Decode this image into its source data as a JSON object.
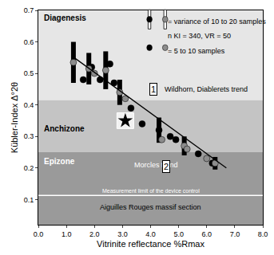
{
  "chart_data": {
    "type": "scatter",
    "x_label": "Vitrinite reflectance %Rmax",
    "y_label": "Kübler-Index Δ°2θ",
    "xlim": [
      0,
      8
    ],
    "ylim": [
      0.02,
      0.7
    ],
    "xticks": [
      {
        "value": 0,
        "label": "0.0"
      },
      {
        "value": 1,
        "label": "1.0"
      },
      {
        "value": 2,
        "label": "2.0"
      },
      {
        "value": 3,
        "label": "3.0"
      },
      {
        "value": 4,
        "label": "4.0"
      },
      {
        "value": 5,
        "label": "5.0"
      },
      {
        "value": 6,
        "label": "6.0"
      },
      {
        "value": 7,
        "label": "7.0"
      },
      {
        "value": 8,
        "label": "8.0"
      }
    ],
    "yticks": [
      0.1,
      0.2,
      0.3,
      0.4,
      0.5,
      0.6,
      0.7
    ],
    "grid": false,
    "zones": [
      {
        "name": "Diagenesis",
        "from": 0.415,
        "to": 0.7,
        "color": "#e6e6e6"
      },
      {
        "name": "Anchizone",
        "from": 0.25,
        "to": 0.415,
        "color": "#c4c4c4"
      },
      {
        "name": "Epizone",
        "from": 0.02,
        "to": 0.25,
        "color": "#9a9a9a"
      }
    ],
    "limit_line": {
      "y": 0.113,
      "label": "Measurement limit of the device control",
      "color": "#ffffff"
    },
    "section_label": {
      "x": 4.0,
      "y": 0.075,
      "text": "Aiguilles Rouges massif section"
    },
    "series": [
      {
        "color": "#000000",
        "marker": "circle",
        "x": [
          1.6,
          1.9,
          2.2,
          2.55,
          2.7,
          3.3,
          3.7,
          4.3,
          4.7,
          4.9,
          5.7,
          6.2
        ],
        "values": [
          0.48,
          0.52,
          0.48,
          0.53,
          0.47,
          0.39,
          0.34,
          0.32,
          0.3,
          0.29,
          0.245,
          0.215
        ],
        "error": [
          null,
          null,
          null,
          null,
          null,
          null,
          null,
          0.04,
          null,
          null,
          null,
          null
        ]
      },
      {
        "color": "#8c8c8c",
        "marker": "circle",
        "x": [
          1.25,
          1.8,
          2.0,
          2.4,
          2.9,
          3.1,
          4.4,
          5.2,
          5.3,
          6.0,
          6.3
        ],
        "values": [
          0.535,
          0.515,
          0.5,
          0.51,
          0.44,
          0.42,
          0.29,
          0.27,
          0.26,
          0.23,
          0.215
        ],
        "error": [
          0.065,
          0.05,
          null,
          0.06,
          0.04,
          null,
          null,
          0.03,
          null,
          null,
          0.02
        ]
      },
      {
        "type": "line",
        "color": "#000000",
        "line_style": "solid",
        "x": [
          1.2,
          6.7
        ],
        "values": [
          0.555,
          0.2
        ]
      }
    ],
    "star": {
      "x": 3.1,
      "y": 0.35,
      "marker": "star",
      "color": "#000000"
    },
    "annotations": [
      {
        "text": "Diagenesis",
        "x": 0.15,
        "y": 0.675,
        "color": "#000000",
        "bold": true
      },
      {
        "text": "Anchizone",
        "x": 0.15,
        "y": 0.325,
        "color": "#000000",
        "bold": true
      },
      {
        "text": "Epizone",
        "x": 0.15,
        "y": 0.22,
        "color": "#ffffff",
        "bold": true
      },
      {
        "text": "= variance of 10 to 20 samples",
        "x": 4.55,
        "y": 0.665,
        "color": "#000000"
      },
      {
        "text": "n KI = 340, VR = 50",
        "x": 4.55,
        "y": 0.62,
        "color": "#000000"
      },
      {
        "text": "= 5 to 10 samples",
        "x": 4.55,
        "y": 0.57,
        "color": "#000000"
      },
      {
        "text": "1",
        "x": 4.1,
        "y": 0.45,
        "color": "#000000",
        "boxed": true
      },
      {
        "text": "Wildhorn, Diablerets trend",
        "x": 4.45,
        "y": 0.45,
        "color": "#000000"
      },
      {
        "text": "Morcles trend",
        "x": 3.35,
        "y": 0.21,
        "color": "#ffffff"
      },
      {
        "text": "2",
        "x": 4.55,
        "y": 0.205,
        "color": "#000000",
        "boxed": true
      }
    ]
  }
}
